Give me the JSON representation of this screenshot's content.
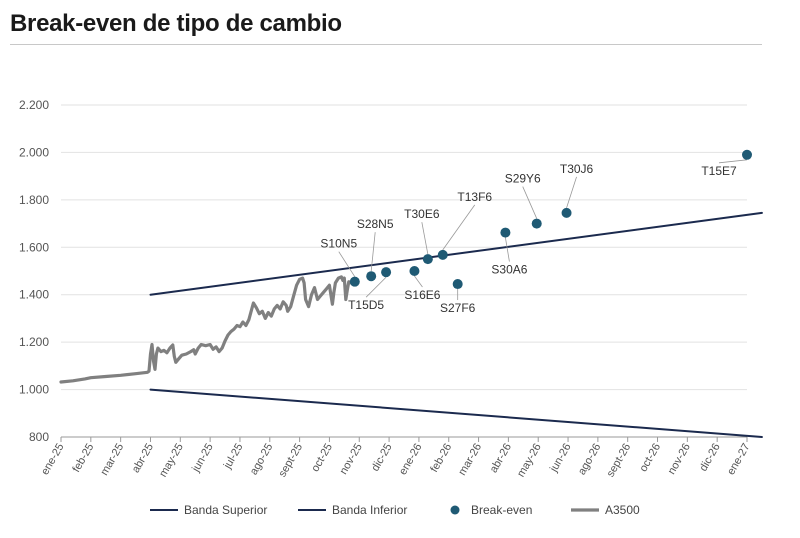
{
  "title": "Break-even de tipo de cambio",
  "chart_data": {
    "type": "line",
    "title": "Break-even de tipo de cambio",
    "ylim": [
      800,
      2200
    ],
    "yticks": [
      800,
      1000,
      1200,
      1400,
      1600,
      1800,
      2000,
      2200
    ],
    "ytick_labels": [
      "800",
      "1.000",
      "1.200",
      "1.400",
      "1.600",
      "1.800",
      "2.000",
      "2.200"
    ],
    "x_months": [
      "ene-25",
      "feb-25",
      "mar-25",
      "abr-25",
      "may-25",
      "jun-25",
      "jul-25",
      "ago-25",
      "sept-25",
      "oct-25",
      "nov-25",
      "dic-25",
      "ene-26",
      "feb-26",
      "mar-26",
      "abr-26",
      "may-26",
      "jun-26",
      "ago-26",
      "sept-26",
      "oct-26",
      "nov-26",
      "dic-26",
      "ene-27"
    ],
    "series": [
      {
        "name": "Banda Superior",
        "color": "#1b2a4e",
        "points": [
          [
            3.0,
            1400
          ],
          [
            23.5,
            1745
          ]
        ]
      },
      {
        "name": "Banda Inferior",
        "color": "#1b2a4e",
        "points": [
          [
            3.0,
            1000
          ],
          [
            23.5,
            800
          ]
        ]
      },
      {
        "name": "A3500",
        "color": "#808080",
        "points": [
          [
            0.0,
            1032
          ],
          [
            0.4,
            1037
          ],
          [
            0.8,
            1045
          ],
          [
            1.0,
            1050
          ],
          [
            1.5,
            1055
          ],
          [
            2.0,
            1060
          ],
          [
            2.5,
            1067
          ],
          [
            2.9,
            1073
          ],
          [
            2.95,
            1078
          ],
          [
            3.0,
            1150
          ],
          [
            3.05,
            1190
          ],
          [
            3.1,
            1120
          ],
          [
            3.15,
            1085
          ],
          [
            3.2,
            1150
          ],
          [
            3.25,
            1175
          ],
          [
            3.35,
            1160
          ],
          [
            3.45,
            1165
          ],
          [
            3.55,
            1155
          ],
          [
            3.65,
            1175
          ],
          [
            3.75,
            1188
          ],
          [
            3.8,
            1140
          ],
          [
            3.85,
            1115
          ],
          [
            3.95,
            1130
          ],
          [
            4.05,
            1145
          ],
          [
            4.2,
            1150
          ],
          [
            4.35,
            1160
          ],
          [
            4.45,
            1168
          ],
          [
            4.5,
            1150
          ],
          [
            4.6,
            1175
          ],
          [
            4.7,
            1190
          ],
          [
            4.85,
            1185
          ],
          [
            5.0,
            1190
          ],
          [
            5.1,
            1170
          ],
          [
            5.2,
            1180
          ],
          [
            5.3,
            1160
          ],
          [
            5.4,
            1175
          ],
          [
            5.5,
            1205
          ],
          [
            5.6,
            1230
          ],
          [
            5.7,
            1245
          ],
          [
            5.8,
            1255
          ],
          [
            5.9,
            1270
          ],
          [
            6.0,
            1265
          ],
          [
            6.1,
            1285
          ],
          [
            6.2,
            1270
          ],
          [
            6.3,
            1295
          ],
          [
            6.45,
            1365
          ],
          [
            6.55,
            1345
          ],
          [
            6.65,
            1320
          ],
          [
            6.75,
            1330
          ],
          [
            6.85,
            1300
          ],
          [
            6.95,
            1325
          ],
          [
            7.05,
            1310
          ],
          [
            7.15,
            1340
          ],
          [
            7.25,
            1355
          ],
          [
            7.35,
            1340
          ],
          [
            7.45,
            1370
          ],
          [
            7.55,
            1355
          ],
          [
            7.6,
            1330
          ],
          [
            7.7,
            1350
          ],
          [
            7.8,
            1395
          ],
          [
            7.9,
            1440
          ],
          [
            8.0,
            1465
          ],
          [
            8.1,
            1470
          ],
          [
            8.15,
            1450
          ],
          [
            8.2,
            1380
          ],
          [
            8.3,
            1350
          ],
          [
            8.4,
            1400
          ],
          [
            8.5,
            1430
          ],
          [
            8.6,
            1380
          ],
          [
            8.7,
            1395
          ],
          [
            8.8,
            1410
          ],
          [
            8.9,
            1425
          ],
          [
            9.0,
            1440
          ],
          [
            9.05,
            1400
          ],
          [
            9.1,
            1360
          ],
          [
            9.15,
            1410
          ],
          [
            9.2,
            1450
          ],
          [
            9.3,
            1470
          ],
          [
            9.4,
            1475
          ],
          [
            9.45,
            1460
          ],
          [
            9.5,
            1470
          ],
          [
            9.55,
            1380
          ],
          [
            9.6,
            1420
          ],
          [
            9.65,
            1455
          ],
          [
            9.75,
            1448
          ]
        ]
      }
    ],
    "break_even": {
      "name": "Break-even",
      "color": "#1f5a74",
      "points": [
        {
          "label": "S10N5",
          "x": 9.85,
          "y": 1455
        },
        {
          "label": "S28N5",
          "x": 10.4,
          "y": 1478
        },
        {
          "label": "T15D5",
          "x": 10.9,
          "y": 1495
        },
        {
          "label": "S16E6",
          "x": 11.85,
          "y": 1500
        },
        {
          "label": "T30E6",
          "x": 12.3,
          "y": 1550
        },
        {
          "label": "T13F6",
          "x": 12.8,
          "y": 1568
        },
        {
          "label": "S27F6",
          "x": 13.3,
          "y": 1445
        },
        {
          "label": "S30A6",
          "x": 14.9,
          "y": 1662
        },
        {
          "label": "S29Y6",
          "x": 15.95,
          "y": 1700
        },
        {
          "label": "T30J6",
          "x": 16.95,
          "y": 1745
        },
        {
          "label": "T15E7",
          "x": 23.0,
          "y": 1990
        }
      ]
    },
    "legend": [
      {
        "name": "Banda Superior",
        "kind": "line",
        "color": "#1b2a4e"
      },
      {
        "name": "Banda Inferior",
        "kind": "line",
        "color": "#1b2a4e"
      },
      {
        "name": "Break-even",
        "kind": "dot",
        "color": "#1f5a74"
      },
      {
        "name": "A3500",
        "kind": "line",
        "color": "#808080"
      }
    ]
  }
}
